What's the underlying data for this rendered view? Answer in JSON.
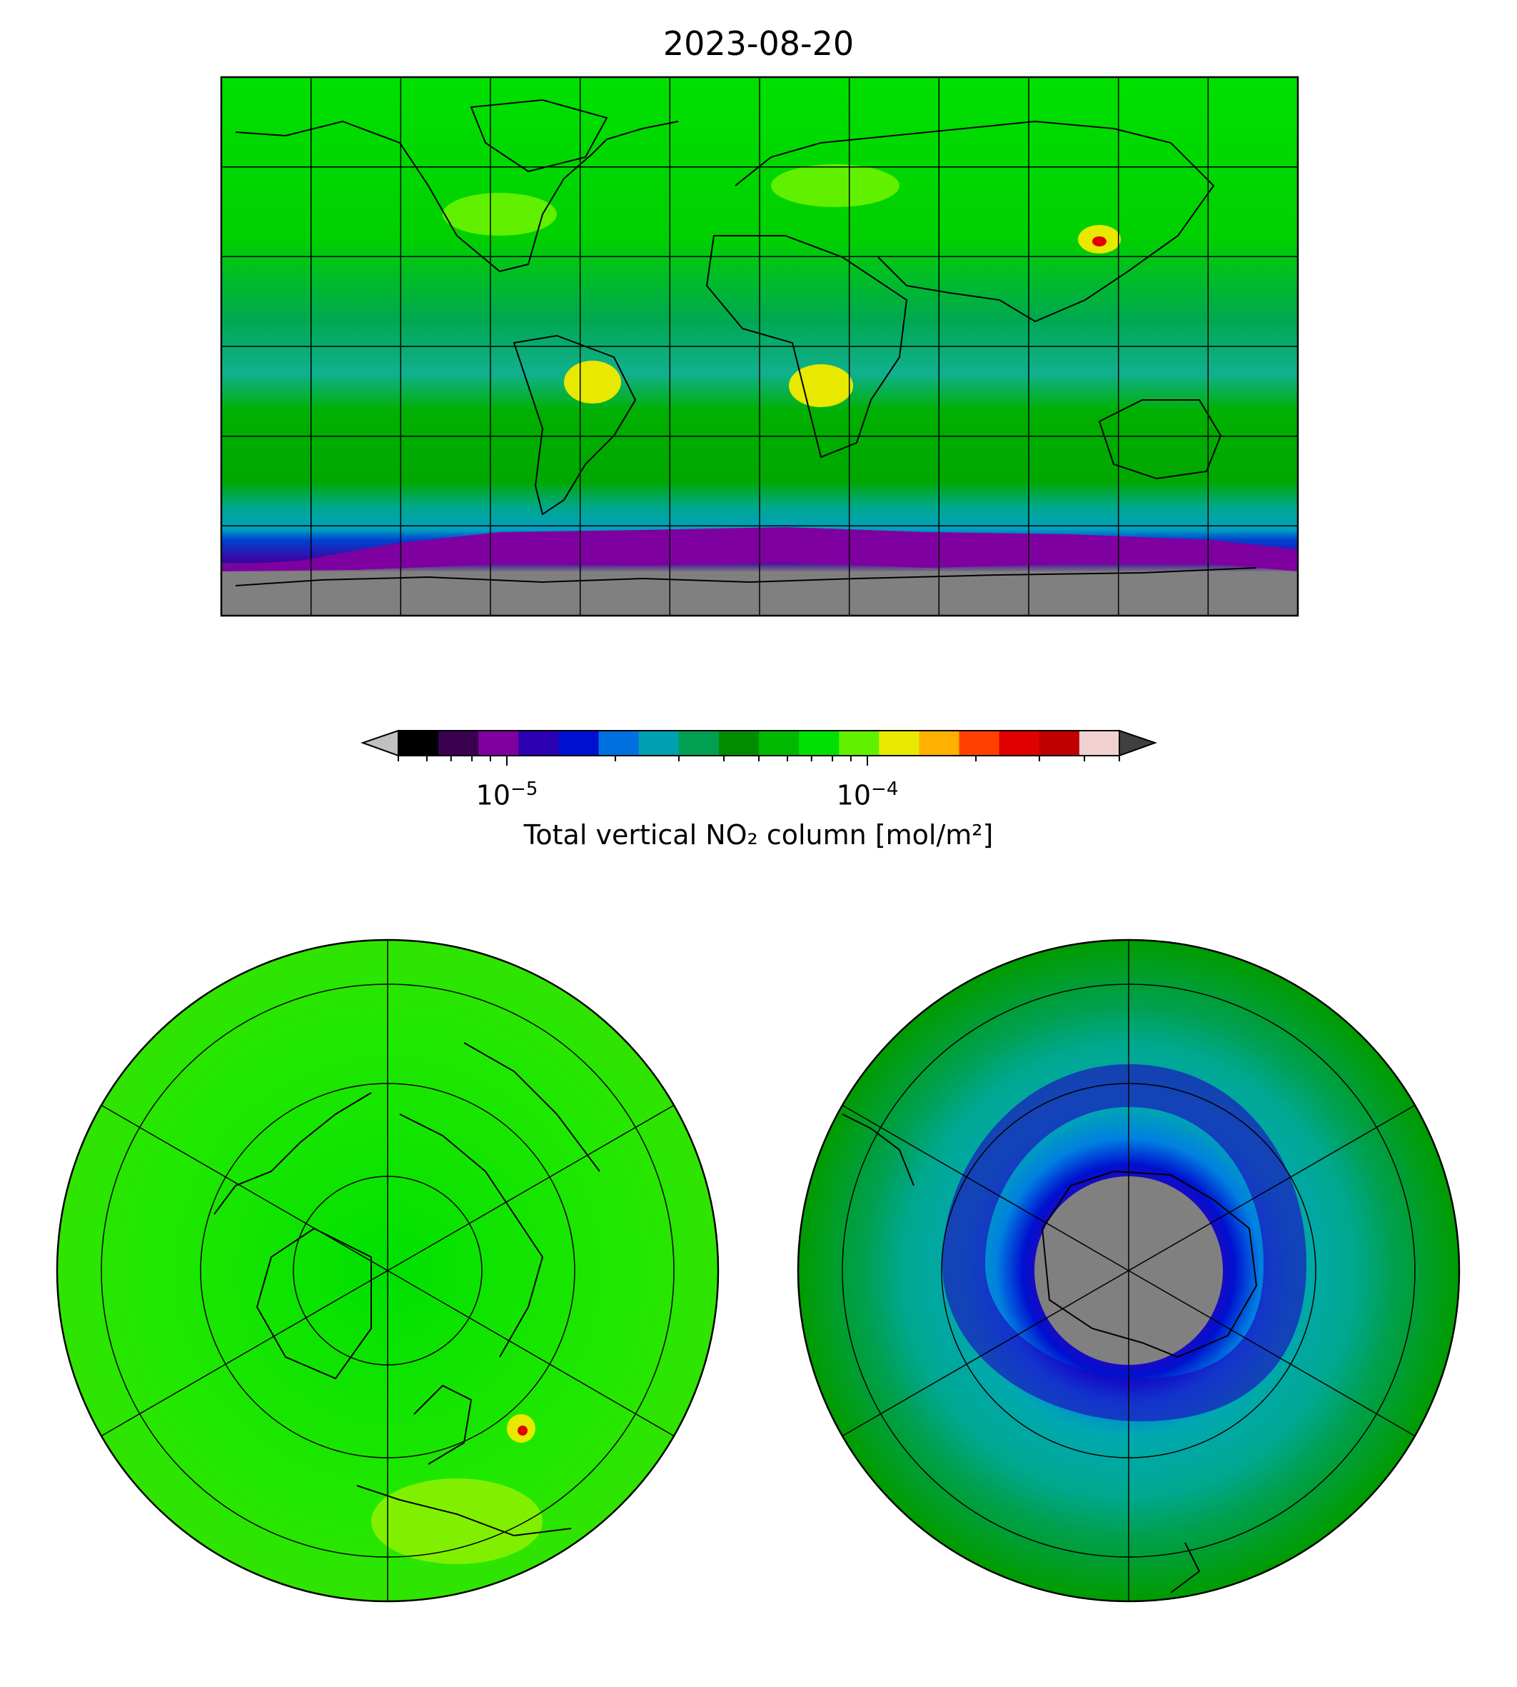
{
  "figure": {
    "title": "2023-08-20"
  },
  "colorbar": {
    "label": "Total vertical NO₂ column [mol/m²]",
    "scale": "log",
    "range": [
      5e-06,
      0.0005
    ],
    "extend": "both",
    "major_ticks": [
      {
        "value": 1e-05,
        "base": "10",
        "exponent": "−5"
      },
      {
        "value": 0.0001,
        "base": "10",
        "exponent": "−4"
      }
    ],
    "colors": [
      "#000000",
      "#3a0050",
      "#7f00a0",
      "#2a00b0",
      "#0010d0",
      "#0070e0",
      "#00a0b0",
      "#00a050",
      "#008c00",
      "#00b800",
      "#00e000",
      "#60f000",
      "#e8e800",
      "#ffb000",
      "#ff4000",
      "#e00000",
      "#c00000",
      "#f0d0d0"
    ],
    "under_color": "#c0c0c0",
    "over_color": "#404040"
  },
  "panels": {
    "world_map": {
      "projection": "plate-carree",
      "gridlines": true,
      "background_color": "#00e000",
      "land_mask_color": "#808080",
      "anomaly_colors": [
        "#00a0b0",
        "#0010d0",
        "#7f00a0"
      ]
    },
    "north_pole_map": {
      "projection": "north-polar-stereographic",
      "gridlines": true,
      "background_color": "#00e000"
    },
    "south_pole_map": {
      "projection": "south-polar-stereographic",
      "gridlines": true,
      "background_color": "#00a000",
      "pole_mask_color": "#808080"
    }
  }
}
